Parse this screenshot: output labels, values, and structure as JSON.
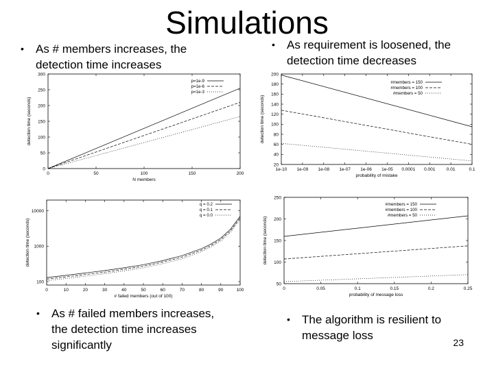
{
  "title": "Simulations",
  "page_number": "23",
  "bullets": [
    "As # members increases, the detection time increases",
    "As requirement is loosened, the detection time decreases",
    "As # failed members increases, the detection time increases significantly",
    "The algorithm is resilient to message loss"
  ],
  "chart_data": [
    {
      "type": "line",
      "xlabel": "N members",
      "ylabel": "detection time (seconds)",
      "xlim": [
        0,
        200
      ],
      "ylim": [
        0,
        300
      ],
      "xticks": [
        "0",
        "50",
        "100",
        "150",
        "200"
      ],
      "yticks": [
        "0",
        "50",
        "100",
        "150",
        "200",
        "250",
        "300"
      ],
      "legend_position": "top-right",
      "series": [
        {
          "name": "p=1e-9",
          "dash": "solid",
          "x": [
            0,
            200
          ],
          "y": [
            0,
            255
          ]
        },
        {
          "name": "p=1e-6",
          "dash": "dashed",
          "x": [
            0,
            200
          ],
          "y": [
            0,
            210
          ]
        },
        {
          "name": "p=1e-3",
          "dash": "dotted",
          "x": [
            0,
            200
          ],
          "y": [
            0,
            165
          ]
        }
      ]
    },
    {
      "type": "line",
      "xlabel": "probability of mistake",
      "ylabel": "detection time (seconds)",
      "xscale": "log",
      "ylim": [
        20,
        200
      ],
      "xticks": [
        "1e-10",
        "1e-09",
        "1e-08",
        "1e-07",
        "1e-06",
        "1e-05",
        "0.0001",
        "0.001",
        "0.01",
        "0.1"
      ],
      "yticks": [
        "20",
        "40",
        "60",
        "80",
        "100",
        "120",
        "140",
        "160",
        "180",
        "200"
      ],
      "legend_position": "top-right",
      "series": [
        {
          "name": "#members = 150",
          "dash": "solid",
          "x": [
            1e-10,
            0.1
          ],
          "y": [
            198,
            95
          ]
        },
        {
          "name": "#members = 100",
          "dash": "dashed",
          "x": [
            1e-10,
            0.1
          ],
          "y": [
            128,
            60
          ]
        },
        {
          "name": "#members = 50",
          "dash": "dotted",
          "x": [
            1e-10,
            0.1
          ],
          "y": [
            62,
            27
          ]
        }
      ]
    },
    {
      "type": "line",
      "xlabel": "# failed members (out of 100)",
      "ylabel": "detection time (seconds)",
      "yscale": "log",
      "xlim": [
        0,
        100
      ],
      "ylim": [
        80,
        20000
      ],
      "xticks": [
        "0",
        "10",
        "20",
        "30",
        "40",
        "50",
        "60",
        "70",
        "80",
        "90",
        "100"
      ],
      "yticks": [
        "100",
        "1000",
        "10000"
      ],
      "legend_position": "top-right",
      "series": [
        {
          "name": "q = 0.2",
          "dash": "solid",
          "x": [
            0,
            10,
            20,
            30,
            40,
            50,
            60,
            70,
            80,
            85,
            90,
            95,
            98,
            100
          ],
          "y": [
            130,
            150,
            175,
            205,
            245,
            300,
            390,
            540,
            850,
            1150,
            1700,
            3000,
            5000,
            7000
          ]
        },
        {
          "name": "q = 0.1",
          "dash": "dashed",
          "x": [
            0,
            10,
            20,
            30,
            40,
            50,
            60,
            70,
            80,
            85,
            90,
            95,
            98,
            100
          ],
          "y": [
            118,
            136,
            158,
            185,
            222,
            272,
            355,
            490,
            770,
            1050,
            1550,
            2700,
            4500,
            6300
          ]
        },
        {
          "name": "q = 0.0",
          "dash": "dotted",
          "x": [
            0,
            10,
            20,
            30,
            40,
            50,
            60,
            70,
            80,
            85,
            90,
            95,
            98,
            100
          ],
          "y": [
            106,
            122,
            142,
            167,
            200,
            245,
            320,
            440,
            700,
            950,
            1400,
            2450,
            4100,
            5700
          ]
        }
      ]
    },
    {
      "type": "line",
      "xlabel": "probability of message loss",
      "ylabel": "detection time (seconds)",
      "xlim": [
        0,
        0.25
      ],
      "ylim": [
        40,
        250
      ],
      "xticks": [
        "0",
        "0.05",
        "0.1",
        "0.15",
        "0.2",
        "0.25"
      ],
      "yticks": [
        "50",
        "100",
        "150",
        "200",
        "250"
      ],
      "legend_position": "top-right",
      "series": [
        {
          "name": "#members = 150",
          "dash": "solid",
          "x": [
            0,
            0.25
          ],
          "y": [
            155,
            205
          ]
        },
        {
          "name": "#members = 100",
          "dash": "dashed",
          "x": [
            0,
            0.25
          ],
          "y": [
            100,
            132
          ]
        },
        {
          "name": "#members = 50",
          "dash": "dotted",
          "x": [
            0,
            0.25
          ],
          "y": [
            45,
            62
          ]
        }
      ]
    }
  ]
}
